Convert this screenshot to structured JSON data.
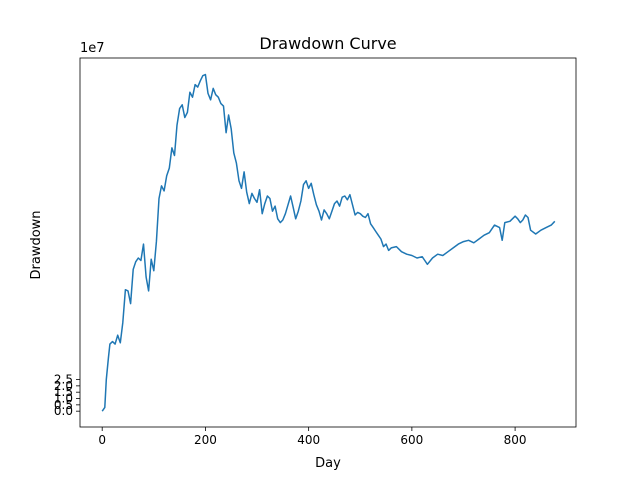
{
  "chart_data": {
    "type": "line",
    "title": "Drawdown Curve",
    "xlabel": "Day",
    "ylabel": "Drawdown",
    "y_offset_text": "1e7",
    "xlim": [
      -43,
      918
    ],
    "ylim": [
      -1.25,
      27.9
    ],
    "y_scale_note": "values in units of 1e7",
    "xticks": [
      0,
      200,
      400,
      600,
      800
    ],
    "xtick_labels": [
      "0",
      "200",
      "400",
      "600",
      "800"
    ],
    "yticks": [
      0.0,
      0.5,
      1.0,
      1.5,
      2.0,
      2.5
    ],
    "ytick_labels": [
      "0.0",
      "0.5",
      "1.0",
      "1.5",
      "2.0",
      "2.5"
    ],
    "grid": false,
    "line_color": "#1f77b4",
    "series": [
      {
        "x": [
          0,
          5,
          8,
          12,
          15,
          20,
          25,
          30,
          35,
          40,
          45,
          50,
          55,
          60,
          65,
          70,
          75,
          80,
          85,
          90,
          95,
          100,
          105,
          110,
          115,
          120,
          125,
          130,
          135,
          140,
          145,
          150,
          155,
          160,
          165,
          170,
          175,
          180,
          185,
          190,
          195,
          200,
          205,
          210,
          215,
          220,
          225,
          230,
          235,
          240,
          245,
          250,
          255,
          260,
          265,
          270,
          275,
          280,
          285,
          290,
          295,
          300,
          305,
          310,
          315,
          320,
          325,
          330,
          335,
          340,
          345,
          350,
          355,
          360,
          365,
          370,
          375,
          380,
          385,
          390,
          395,
          400,
          405,
          410,
          415,
          420,
          425,
          430,
          435,
          440,
          445,
          450,
          455,
          460,
          465,
          470,
          475,
          480,
          485,
          490,
          495,
          500,
          505,
          510,
          515,
          520,
          525,
          530,
          535,
          540,
          545,
          550,
          555,
          560,
          570,
          580,
          590,
          600,
          610,
          620,
          625,
          630,
          640,
          650,
          660,
          670,
          680,
          690,
          700,
          710,
          720,
          730,
          740,
          750,
          760,
          770,
          775,
          780,
          790,
          800,
          805,
          810,
          815,
          820,
          825,
          830,
          840,
          850,
          860,
          870,
          877
        ],
        "y": [
          0.0,
          0.3,
          2.5,
          4.2,
          5.3,
          5.5,
          5.3,
          6.0,
          5.4,
          7.0,
          9.6,
          9.5,
          8.5,
          11.2,
          11.8,
          12.1,
          11.9,
          13.2,
          10.6,
          9.5,
          12.0,
          11.1,
          13.4,
          16.8,
          17.8,
          17.4,
          18.6,
          19.2,
          20.8,
          20.2,
          22.6,
          23.9,
          24.2,
          23.2,
          23.6,
          25.2,
          24.8,
          25.8,
          25.6,
          26.1,
          26.5,
          26.6,
          25.1,
          24.6,
          25.5,
          25.0,
          24.8,
          24.3,
          24.1,
          22.0,
          23.4,
          22.3,
          20.4,
          19.6,
          18.2,
          17.6,
          18.9,
          17.3,
          16.4,
          17.2,
          16.8,
          16.5,
          17.5,
          15.6,
          16.4,
          17.0,
          16.8,
          15.8,
          16.2,
          15.2,
          14.9,
          15.1,
          15.6,
          16.3,
          17.0,
          16.1,
          15.2,
          15.8,
          16.6,
          17.9,
          18.2,
          17.6,
          18.0,
          17.1,
          16.3,
          15.8,
          15.1,
          15.9,
          15.6,
          15.2,
          15.8,
          16.4,
          16.6,
          16.2,
          16.9,
          17.0,
          16.7,
          17.1,
          16.3,
          15.5,
          15.7,
          15.6,
          15.4,
          15.3,
          15.6,
          14.8,
          14.5,
          14.2,
          13.9,
          13.6,
          13.0,
          13.2,
          12.7,
          12.9,
          13.0,
          12.6,
          12.4,
          12.3,
          12.1,
          12.2,
          11.9,
          11.6,
          12.1,
          12.4,
          12.3,
          12.6,
          12.9,
          13.2,
          13.4,
          13.5,
          13.3,
          13.6,
          13.9,
          14.1,
          14.7,
          14.5,
          13.5,
          14.9,
          15.0,
          15.4,
          15.2,
          14.9,
          15.1,
          15.5,
          15.3,
          14.3,
          14.0,
          14.3,
          14.5,
          14.7,
          15.0
        ]
      }
    ]
  }
}
